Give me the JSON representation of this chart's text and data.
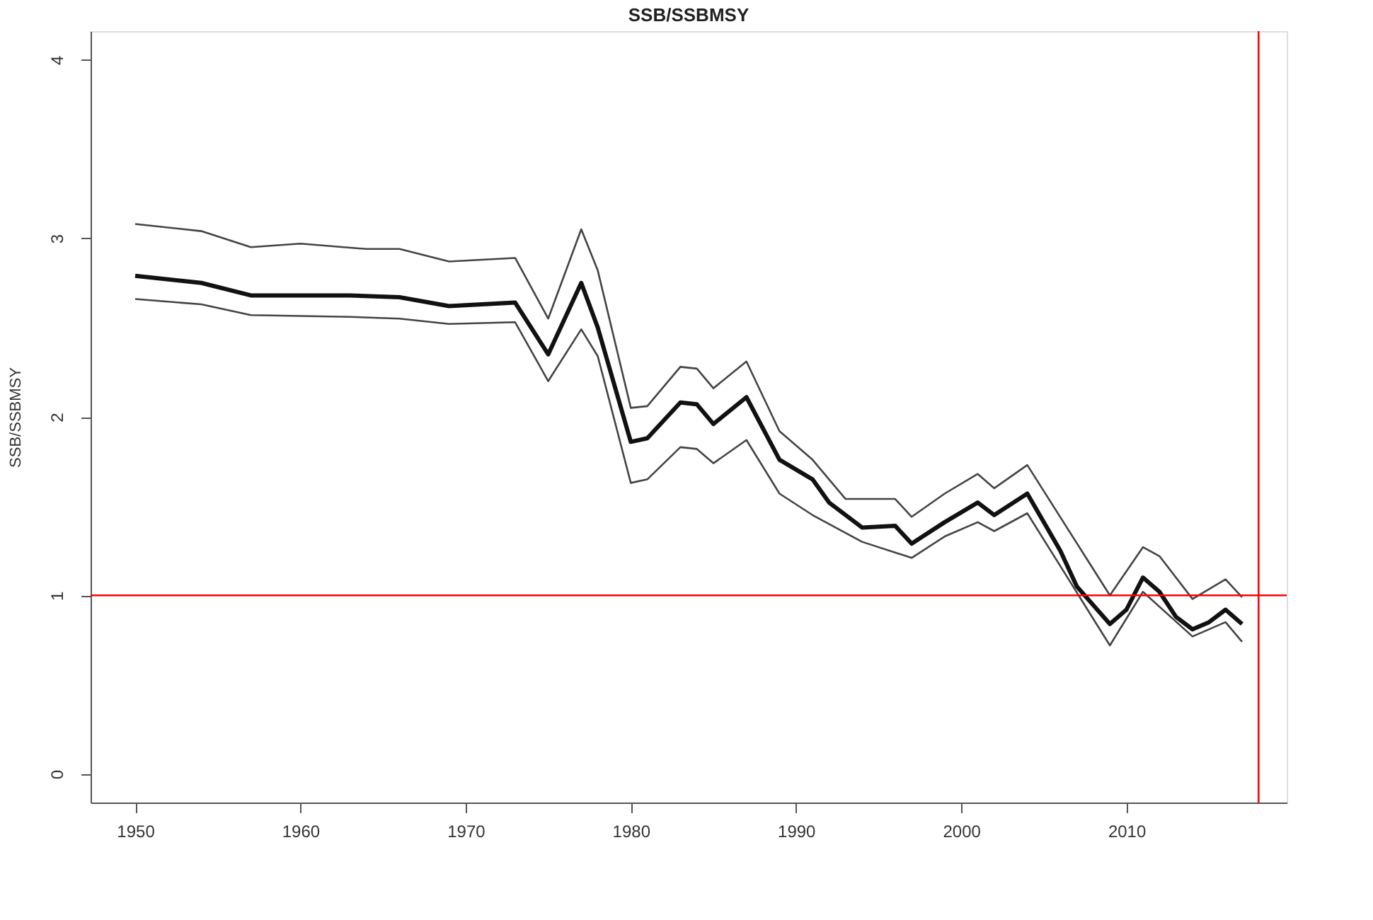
{
  "chart_data": {
    "type": "line",
    "title": "SSB/SSBMSY",
    "ylabel": "SSB/SSBMSY",
    "xlim": [
      1947.3,
      2019.7
    ],
    "ylim": [
      -0.16,
      4.16
    ],
    "xticks": [
      1950,
      1960,
      1970,
      1980,
      1990,
      2000,
      2010
    ],
    "yticks": [
      0,
      1,
      2,
      3,
      4
    ],
    "grid": false,
    "marker": "none",
    "line_style": "solid",
    "series": [
      {
        "color": "#111111",
        "x": [
          1950,
          1954,
          1957,
          1963,
          1966,
          1969,
          1973,
          1975,
          1977,
          1978,
          1980,
          1981,
          1983,
          1984,
          1985,
          1987,
          1989,
          1991,
          1992,
          1994,
          1996,
          1997,
          1999,
          2001,
          2002,
          2004,
          2006,
          2007,
          2009,
          2010,
          2011,
          2012,
          2013,
          2014,
          2015,
          2016,
          2017
        ],
        "values": [
          2.79,
          2.75,
          2.68,
          2.68,
          2.67,
          2.62,
          2.64,
          2.35,
          2.75,
          2.5,
          1.86,
          1.88,
          2.08,
          2.07,
          1.96,
          2.11,
          1.76,
          1.65,
          1.52,
          1.38,
          1.39,
          1.29,
          1.41,
          1.52,
          1.45,
          1.57,
          1.25,
          1.05,
          0.84,
          0.92,
          1.1,
          1.02,
          0.88,
          0.81,
          0.85,
          0.92,
          0.84
        ]
      },
      {
        "color": "#444444",
        "x": [
          1950,
          1954,
          1957,
          1960,
          1964,
          1966,
          1969,
          1973,
          1975,
          1977,
          1978,
          1980,
          1981,
          1983,
          1984,
          1985,
          1987,
          1989,
          1991,
          1993,
          1996,
          1997,
          1999,
          2001,
          2002,
          2004,
          2009,
          2011,
          2012,
          2014,
          2016,
          2017
        ],
        "values": [
          3.08,
          3.04,
          2.95,
          2.97,
          2.94,
          2.94,
          2.87,
          2.89,
          2.55,
          3.05,
          2.82,
          2.05,
          2.06,
          2.28,
          2.27,
          2.16,
          2.31,
          1.92,
          1.76,
          1.54,
          1.54,
          1.44,
          1.57,
          1.68,
          1.6,
          1.73,
          1.0,
          1.27,
          1.22,
          0.98,
          1.09,
          0.99
        ]
      },
      {
        "color": "#444444",
        "x": [
          1950,
          1954,
          1957,
          1963,
          1966,
          1969,
          1973,
          1975,
          1977,
          1978,
          1980,
          1981,
          1983,
          1984,
          1985,
          1987,
          1989,
          1991,
          1994,
          1997,
          1999,
          2001,
          2002,
          2004,
          2009,
          2011,
          2014,
          2016,
          2017
        ],
        "values": [
          2.66,
          2.63,
          2.57,
          2.56,
          2.55,
          2.52,
          2.53,
          2.2,
          2.49,
          2.34,
          1.63,
          1.65,
          1.83,
          1.82,
          1.74,
          1.87,
          1.57,
          1.45,
          1.3,
          1.21,
          1.33,
          1.41,
          1.36,
          1.46,
          0.72,
          1.02,
          0.77,
          0.85,
          0.74
        ]
      }
    ],
    "ref_lines": [
      {
        "axis": "y",
        "value": 1,
        "color": "#ff0000"
      },
      {
        "axis": "x",
        "value": 2018,
        "color": "#ff0000"
      }
    ]
  }
}
